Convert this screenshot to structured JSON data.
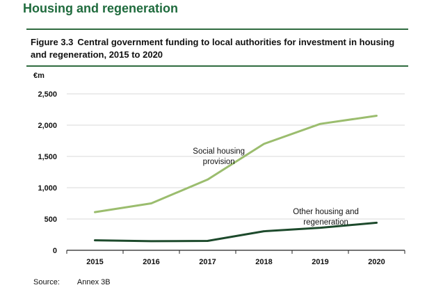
{
  "page": {
    "section_title": "Housing and regeneration",
    "figure_number": "Figure 3.3",
    "figure_title": "Central government funding to local authorities for investment in housing and regeneration, 2015 to 2020",
    "source_label": "Source:",
    "source_value": "Annex 3B"
  },
  "colors": {
    "title_green": "#1f6b3d",
    "rule_green": "#2f6b3f",
    "social_housing_line": "#9bbd6e",
    "other_housing_line": "#1d4a2c",
    "gridline": "#d9d9d9"
  },
  "chart_data": {
    "type": "line",
    "title": "Central government funding to local authorities for investment in housing and regeneration, 2015 to 2020",
    "unit_label": "€m",
    "xlabel": "",
    "ylabel": "",
    "x": [
      "2015",
      "2016",
      "2017",
      "2018",
      "2019",
      "2020"
    ],
    "ylim": [
      0,
      2500
    ],
    "yticks": [
      0,
      500,
      1000,
      1500,
      2000,
      2500
    ],
    "ytick_labels": [
      "0",
      "500",
      "1,000",
      "1,500",
      "2,000",
      "2,500"
    ],
    "grid": true,
    "legend": "direct labels",
    "series": [
      {
        "name": "Social housing provision",
        "label_lines": [
          "Social housing",
          "provision"
        ],
        "color": "#9bbd6e",
        "values": [
          610,
          750,
          1130,
          1700,
          2020,
          2150
        ]
      },
      {
        "name": "Other housing and regeneration",
        "label_lines": [
          "Other housing and",
          "regeneration"
        ],
        "color": "#1d4a2c",
        "values": [
          160,
          145,
          150,
          305,
          360,
          440
        ]
      }
    ]
  }
}
